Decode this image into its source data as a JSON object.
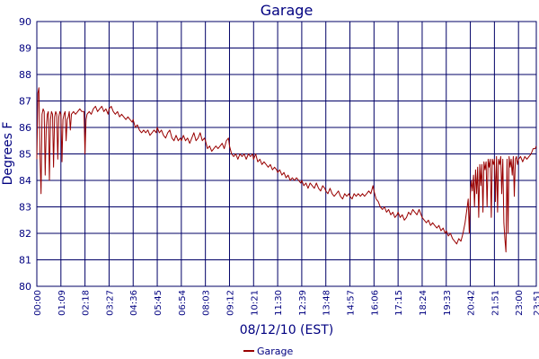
{
  "chart_data": {
    "type": "line",
    "title": "Garage",
    "xlabel": "08/12/10 (EST)",
    "ylabel": "Degrees F",
    "ylim": [
      80,
      90
    ],
    "yticks": [
      80,
      81,
      82,
      83,
      84,
      85,
      86,
      87,
      88,
      89,
      90
    ],
    "xlim": [
      "00:00",
      "23:51"
    ],
    "xtick_labels": [
      "00:00",
      "01:09",
      "02:18",
      "03:27",
      "04:36",
      "05:45",
      "06:54",
      "08:03",
      "09:12",
      "10:21",
      "11:30",
      "12:39",
      "13:48",
      "14:57",
      "16:06",
      "17:15",
      "18:24",
      "19:33",
      "20:42",
      "21:51",
      "23:00",
      "23:51"
    ],
    "grid": true,
    "legend_position": "bottom-center",
    "colors": {
      "series": "#990000",
      "grid": "#000066",
      "text": "#000080"
    },
    "series": [
      {
        "name": "Garage",
        "points": [
          [
            "00:00",
            84.8
          ],
          [
            "00:03",
            87.3
          ],
          [
            "00:06",
            87.5
          ],
          [
            "00:09",
            85.0
          ],
          [
            "00:12",
            83.5
          ],
          [
            "00:15",
            86.5
          ],
          [
            "00:18",
            86.7
          ],
          [
            "00:21",
            86.6
          ],
          [
            "00:24",
            84.2
          ],
          [
            "00:27",
            86.0
          ],
          [
            "00:30",
            86.5
          ],
          [
            "00:33",
            86.6
          ],
          [
            "00:36",
            84.0
          ],
          [
            "00:39",
            86.3
          ],
          [
            "00:42",
            86.6
          ],
          [
            "00:45",
            86.5
          ],
          [
            "00:48",
            84.5
          ],
          [
            "00:51",
            86.4
          ],
          [
            "00:54",
            86.6
          ],
          [
            "00:57",
            86.5
          ],
          [
            "01:00",
            84.8
          ],
          [
            "01:03",
            86.4
          ],
          [
            "01:06",
            86.6
          ],
          [
            "01:09",
            86.5
          ],
          [
            "01:12",
            84.7
          ],
          [
            "01:15",
            86.3
          ],
          [
            "01:18",
            86.5
          ],
          [
            "01:21",
            86.6
          ],
          [
            "01:24",
            85.5
          ],
          [
            "01:27",
            86.3
          ],
          [
            "01:30",
            86.4
          ],
          [
            "01:33",
            86.6
          ],
          [
            "01:36",
            85.9
          ],
          [
            "01:39",
            86.5
          ],
          [
            "01:45",
            86.6
          ],
          [
            "01:51",
            86.5
          ],
          [
            "01:57",
            86.6
          ],
          [
            "02:03",
            86.7
          ],
          [
            "02:09",
            86.6
          ],
          [
            "02:15",
            86.6
          ],
          [
            "02:18",
            85.0
          ],
          [
            "02:21",
            86.3
          ],
          [
            "02:24",
            86.5
          ],
          [
            "02:30",
            86.6
          ],
          [
            "02:36",
            86.5
          ],
          [
            "02:42",
            86.7
          ],
          [
            "02:48",
            86.8
          ],
          [
            "02:54",
            86.6
          ],
          [
            "03:00",
            86.7
          ],
          [
            "03:06",
            86.8
          ],
          [
            "03:12",
            86.6
          ],
          [
            "03:18",
            86.7
          ],
          [
            "03:24",
            86.5
          ],
          [
            "03:27",
            86.7
          ],
          [
            "03:33",
            86.8
          ],
          [
            "03:39",
            86.6
          ],
          [
            "03:45",
            86.5
          ],
          [
            "03:51",
            86.6
          ],
          [
            "03:57",
            86.4
          ],
          [
            "04:03",
            86.5
          ],
          [
            "04:09",
            86.4
          ],
          [
            "04:15",
            86.3
          ],
          [
            "04:21",
            86.4
          ],
          [
            "04:27",
            86.3
          ],
          [
            "04:33",
            86.2
          ],
          [
            "04:36",
            86.3
          ],
          [
            "04:42",
            86.0
          ],
          [
            "04:48",
            86.1
          ],
          [
            "04:54",
            85.9
          ],
          [
            "05:00",
            85.8
          ],
          [
            "05:06",
            85.9
          ],
          [
            "05:12",
            85.8
          ],
          [
            "05:18",
            85.9
          ],
          [
            "05:24",
            85.7
          ],
          [
            "05:30",
            85.8
          ],
          [
            "05:36",
            85.9
          ],
          [
            "05:42",
            85.8
          ],
          [
            "05:45",
            86.0
          ],
          [
            "05:51",
            85.8
          ],
          [
            "05:57",
            85.9
          ],
          [
            "06:03",
            85.7
          ],
          [
            "06:09",
            85.6
          ],
          [
            "06:15",
            85.8
          ],
          [
            "06:21",
            85.9
          ],
          [
            "06:27",
            85.6
          ],
          [
            "06:33",
            85.5
          ],
          [
            "06:39",
            85.7
          ],
          [
            "06:45",
            85.5
          ],
          [
            "06:51",
            85.6
          ],
          [
            "06:54",
            85.5
          ],
          [
            "07:00",
            85.7
          ],
          [
            "07:06",
            85.5
          ],
          [
            "07:12",
            85.6
          ],
          [
            "07:18",
            85.4
          ],
          [
            "07:24",
            85.6
          ],
          [
            "07:30",
            85.8
          ],
          [
            "07:36",
            85.5
          ],
          [
            "07:42",
            85.6
          ],
          [
            "07:48",
            85.8
          ],
          [
            "07:54",
            85.5
          ],
          [
            "08:00",
            85.6
          ],
          [
            "08:03",
            85.5
          ],
          [
            "08:09",
            85.2
          ],
          [
            "08:15",
            85.3
          ],
          [
            "08:21",
            85.1
          ],
          [
            "08:27",
            85.2
          ],
          [
            "08:33",
            85.3
          ],
          [
            "08:39",
            85.2
          ],
          [
            "08:45",
            85.3
          ],
          [
            "08:51",
            85.4
          ],
          [
            "08:57",
            85.2
          ],
          [
            "09:03",
            85.5
          ],
          [
            "09:09",
            85.6
          ],
          [
            "09:12",
            85.3
          ],
          [
            "09:18",
            85.0
          ],
          [
            "09:24",
            84.9
          ],
          [
            "09:30",
            85.0
          ],
          [
            "09:36",
            84.8
          ],
          [
            "09:42",
            85.0
          ],
          [
            "09:48",
            84.9
          ],
          [
            "09:54",
            85.0
          ],
          [
            "10:00",
            84.8
          ],
          [
            "10:06",
            85.0
          ],
          [
            "10:12",
            84.9
          ],
          [
            "10:18",
            85.0
          ],
          [
            "10:21",
            84.8
          ],
          [
            "10:27",
            85.0
          ],
          [
            "10:33",
            84.7
          ],
          [
            "10:39",
            84.8
          ],
          [
            "10:45",
            84.6
          ],
          [
            "10:51",
            84.7
          ],
          [
            "10:57",
            84.6
          ],
          [
            "11:03",
            84.5
          ],
          [
            "11:09",
            84.6
          ],
          [
            "11:15",
            84.4
          ],
          [
            "11:21",
            84.5
          ],
          [
            "11:27",
            84.4
          ],
          [
            "11:30",
            84.3
          ],
          [
            "11:36",
            84.4
          ],
          [
            "11:42",
            84.2
          ],
          [
            "11:48",
            84.3
          ],
          [
            "11:54",
            84.1
          ],
          [
            "12:00",
            84.2
          ],
          [
            "12:06",
            84.0
          ],
          [
            "12:12",
            84.1
          ],
          [
            "12:18",
            84.0
          ],
          [
            "12:24",
            84.1
          ],
          [
            "12:30",
            84.0
          ],
          [
            "12:36",
            83.9
          ],
          [
            "12:39",
            84.0
          ],
          [
            "12:45",
            83.8
          ],
          [
            "12:51",
            83.9
          ],
          [
            "12:57",
            83.7
          ],
          [
            "13:03",
            83.9
          ],
          [
            "13:09",
            83.8
          ],
          [
            "13:15",
            83.7
          ],
          [
            "13:21",
            83.9
          ],
          [
            "13:27",
            83.7
          ],
          [
            "13:33",
            83.6
          ],
          [
            "13:39",
            83.8
          ],
          [
            "13:45",
            83.7
          ],
          [
            "13:48",
            83.6
          ],
          [
            "13:54",
            83.5
          ],
          [
            "14:00",
            83.7
          ],
          [
            "14:06",
            83.5
          ],
          [
            "14:12",
            83.4
          ],
          [
            "14:18",
            83.5
          ],
          [
            "14:24",
            83.6
          ],
          [
            "14:30",
            83.4
          ],
          [
            "14:36",
            83.3
          ],
          [
            "14:42",
            83.5
          ],
          [
            "14:48",
            83.4
          ],
          [
            "14:54",
            83.5
          ],
          [
            "14:57",
            83.4
          ],
          [
            "15:03",
            83.3
          ],
          [
            "15:09",
            83.5
          ],
          [
            "15:15",
            83.4
          ],
          [
            "15:21",
            83.5
          ],
          [
            "15:27",
            83.4
          ],
          [
            "15:33",
            83.5
          ],
          [
            "15:39",
            83.4
          ],
          [
            "15:45",
            83.5
          ],
          [
            "15:51",
            83.6
          ],
          [
            "15:57",
            83.5
          ],
          [
            "16:03",
            83.8
          ],
          [
            "16:06",
            83.6
          ],
          [
            "16:12",
            83.3
          ],
          [
            "16:18",
            83.2
          ],
          [
            "16:24",
            83.0
          ],
          [
            "16:30",
            82.9
          ],
          [
            "16:36",
            83.0
          ],
          [
            "16:42",
            82.8
          ],
          [
            "16:48",
            82.9
          ],
          [
            "16:54",
            82.7
          ],
          [
            "17:00",
            82.8
          ],
          [
            "17:06",
            82.6
          ],
          [
            "17:12",
            82.7
          ],
          [
            "17:15",
            82.8
          ],
          [
            "17:21",
            82.6
          ],
          [
            "17:27",
            82.7
          ],
          [
            "17:33",
            82.5
          ],
          [
            "17:39",
            82.6
          ],
          [
            "17:45",
            82.8
          ],
          [
            "17:51",
            82.7
          ],
          [
            "17:57",
            82.9
          ],
          [
            "18:03",
            82.8
          ],
          [
            "18:09",
            82.7
          ],
          [
            "18:15",
            82.9
          ],
          [
            "18:21",
            82.7
          ],
          [
            "18:24",
            82.6
          ],
          [
            "18:30",
            82.5
          ],
          [
            "18:36",
            82.4
          ],
          [
            "18:42",
            82.5
          ],
          [
            "18:48",
            82.3
          ],
          [
            "18:54",
            82.4
          ],
          [
            "19:00",
            82.3
          ],
          [
            "19:06",
            82.2
          ],
          [
            "19:12",
            82.3
          ],
          [
            "19:18",
            82.1
          ],
          [
            "19:24",
            82.2
          ],
          [
            "19:30",
            82.0
          ],
          [
            "19:33",
            82.1
          ],
          [
            "19:39",
            81.9
          ],
          [
            "19:45",
            82.0
          ],
          [
            "19:51",
            81.8
          ],
          [
            "19:57",
            81.7
          ],
          [
            "20:03",
            81.6
          ],
          [
            "20:09",
            81.8
          ],
          [
            "20:15",
            81.7
          ],
          [
            "20:21",
            82.0
          ],
          [
            "20:27",
            82.4
          ],
          [
            "20:33",
            83.0
          ],
          [
            "20:36",
            83.3
          ],
          [
            "20:39",
            82.0
          ],
          [
            "20:42",
            83.5
          ],
          [
            "20:45",
            84.0
          ],
          [
            "20:48",
            83.6
          ],
          [
            "20:51",
            84.2
          ],
          [
            "20:54",
            83.0
          ],
          [
            "20:57",
            84.4
          ],
          [
            "21:00",
            83.5
          ],
          [
            "21:03",
            84.5
          ],
          [
            "21:06",
            82.6
          ],
          [
            "21:09",
            84.6
          ],
          [
            "21:12",
            83.8
          ],
          [
            "21:15",
            84.6
          ],
          [
            "21:18",
            82.8
          ],
          [
            "21:21",
            84.7
          ],
          [
            "21:24",
            84.4
          ],
          [
            "21:27",
            84.7
          ],
          [
            "21:30",
            83.0
          ],
          [
            "21:33",
            84.8
          ],
          [
            "21:36",
            84.5
          ],
          [
            "21:39",
            84.8
          ],
          [
            "21:42",
            82.6
          ],
          [
            "21:45",
            84.8
          ],
          [
            "21:48",
            84.6
          ],
          [
            "21:51",
            84.8
          ],
          [
            "21:54",
            83.2
          ],
          [
            "21:57",
            84.9
          ],
          [
            "22:00",
            82.8
          ],
          [
            "22:03",
            84.8
          ],
          [
            "22:06",
            84.6
          ],
          [
            "22:09",
            84.9
          ],
          [
            "22:12",
            83.5
          ],
          [
            "22:15",
            84.8
          ],
          [
            "22:18",
            82.4
          ],
          [
            "22:21",
            81.8
          ],
          [
            "22:24",
            81.3
          ],
          [
            "22:27",
            84.8
          ],
          [
            "22:30",
            82.0
          ],
          [
            "22:33",
            84.9
          ],
          [
            "22:36",
            84.5
          ],
          [
            "22:39",
            84.8
          ],
          [
            "22:42",
            84.2
          ],
          [
            "22:45",
            84.9
          ],
          [
            "22:48",
            83.4
          ],
          [
            "22:51",
            84.8
          ],
          [
            "22:54",
            84.9
          ],
          [
            "22:57",
            84.6
          ],
          [
            "23:00",
            84.8
          ],
          [
            "23:06",
            84.9
          ],
          [
            "23:12",
            84.7
          ],
          [
            "23:18",
            84.9
          ],
          [
            "23:24",
            84.8
          ],
          [
            "23:30",
            84.9
          ],
          [
            "23:36",
            85.0
          ],
          [
            "23:42",
            85.2
          ],
          [
            "23:48",
            85.2
          ],
          [
            "23:51",
            85.3
          ]
        ]
      }
    ]
  }
}
